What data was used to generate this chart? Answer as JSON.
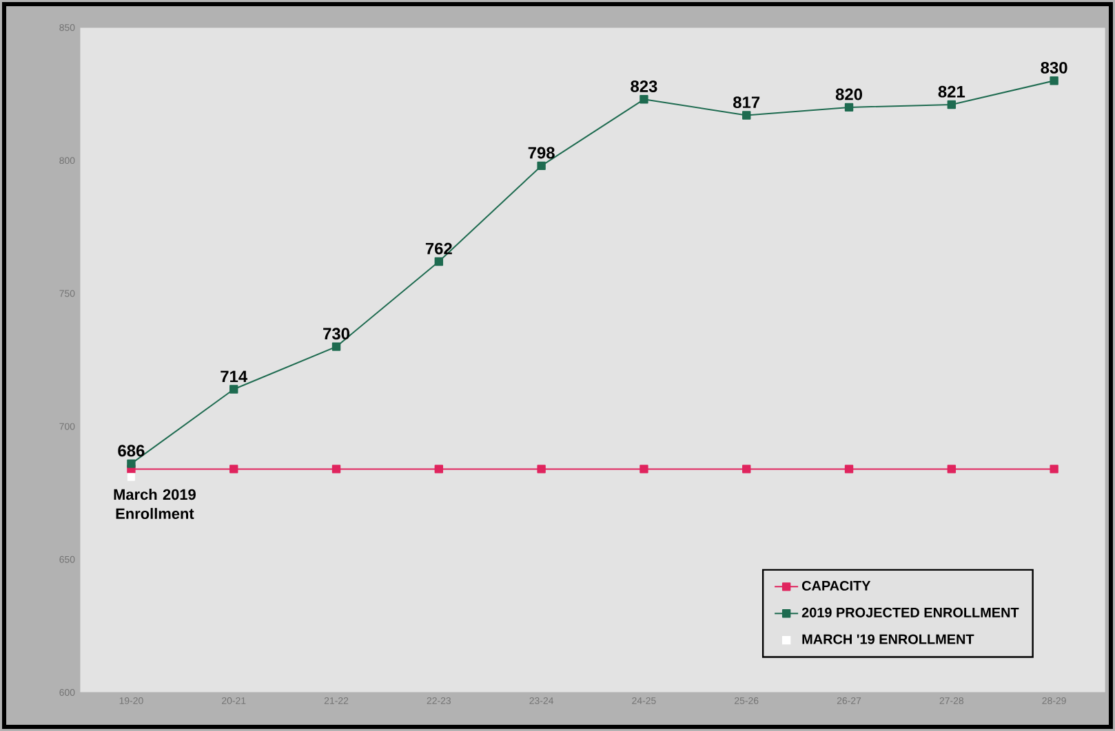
{
  "chart_data": {
    "type": "line",
    "categories": [
      "19-20",
      "20-21",
      "21-22",
      "22-23",
      "23-24",
      "24-25",
      "25-26",
      "26-27",
      "27-28",
      "28-29"
    ],
    "ylim": [
      600,
      850
    ],
    "yticks": [
      600,
      650,
      700,
      750,
      800,
      850
    ],
    "marker": "square",
    "legend": "bottom right",
    "series": [
      {
        "name": "CAPACITY",
        "color": "#e0245e",
        "values": [
          684,
          684,
          684,
          684,
          684,
          684,
          684,
          684,
          684,
          684
        ]
      },
      {
        "name": "2019 PROJECTED ENROLLMENT",
        "color": "#1e6b50",
        "values": [
          686,
          714,
          730,
          762,
          798,
          823,
          817,
          820,
          821,
          830
        ],
        "value_labels": [
          "686",
          "714",
          "730",
          "762",
          "798",
          "823",
          "817",
          "820",
          "821",
          "830"
        ]
      },
      {
        "name": "MARCH '19 ENROLLMENT",
        "color": "#ffffff",
        "type": "scatter",
        "values": [
          681,
          null,
          null,
          null,
          null,
          null,
          null,
          null,
          null,
          null
        ]
      }
    ],
    "annotations": [
      {
        "text": "March 2019 Enrollment",
        "x": "19-20",
        "y": 681
      }
    ]
  }
}
